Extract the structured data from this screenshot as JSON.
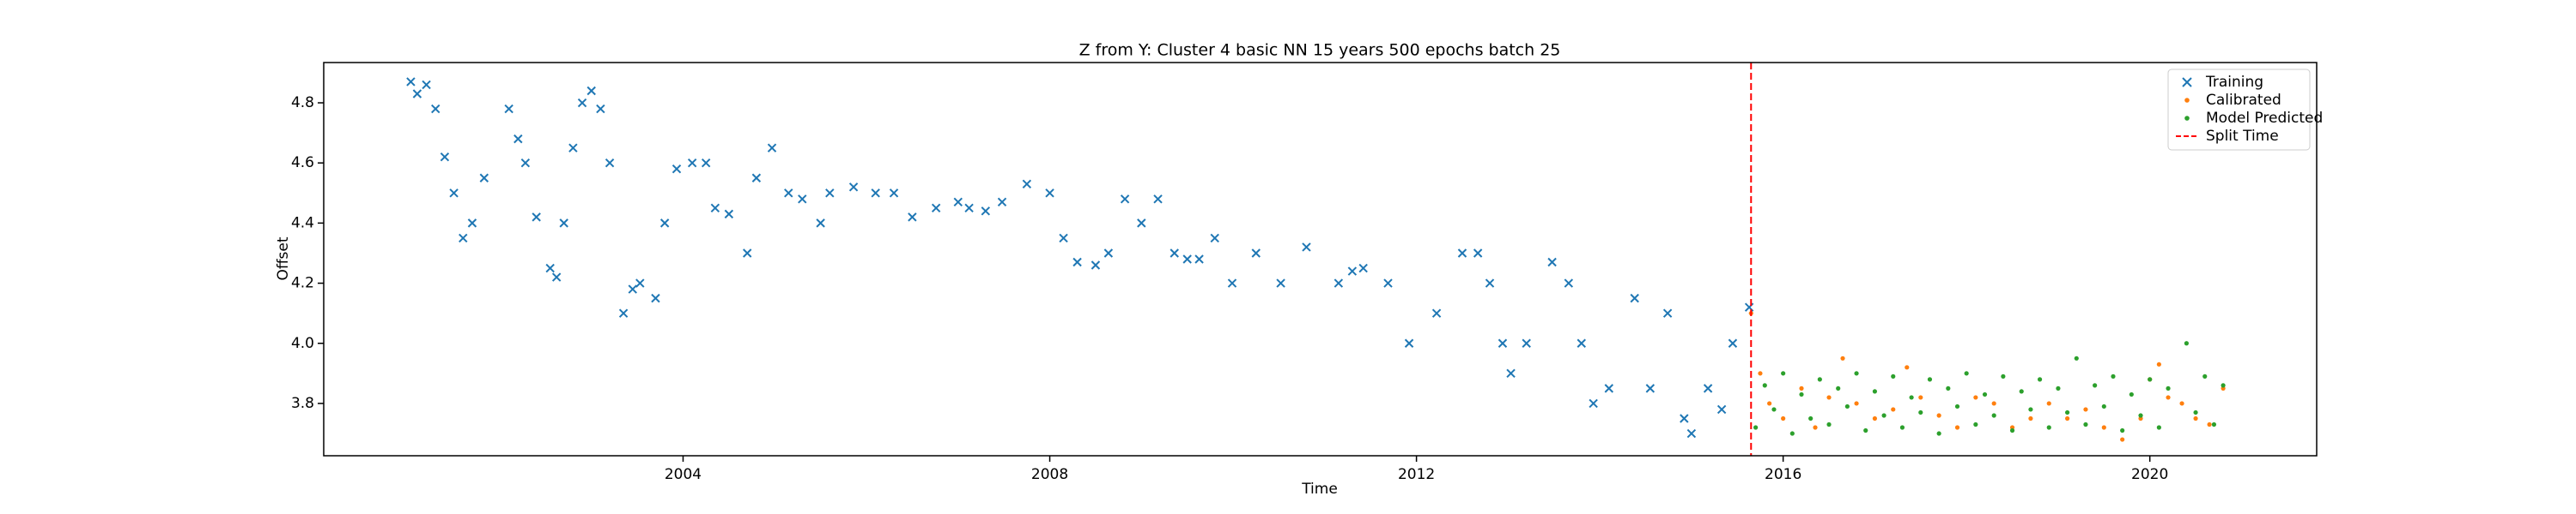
{
  "chart_data": {
    "type": "scatter",
    "title": "Z from Y: Cluster 4 basic NN 15 years 500 epochs batch 25",
    "x_label": "Time",
    "y_label": "Offset",
    "xlim": [
      2000.08,
      2021.82
    ],
    "ylim": [
      3.626,
      4.934
    ],
    "xticks": [
      2004,
      2008,
      2012,
      2016,
      2020
    ],
    "yticks": [
      {
        "value": 3.8,
        "label": "3.8"
      },
      {
        "value": 4.0,
        "label": "4.0"
      },
      {
        "value": 4.2,
        "label": "4.2"
      },
      {
        "value": 4.4,
        "label": "4.4"
      },
      {
        "value": 4.6,
        "label": "4.6"
      },
      {
        "value": 4.8,
        "label": "4.8"
      }
    ],
    "legend": "upper right",
    "series": [
      {
        "name": "Training",
        "color": "#1f77b4",
        "marker": "x",
        "x": [
          2001.03,
          2001.1,
          2001.2,
          2001.3,
          2001.4,
          2001.5,
          2001.6,
          2001.7,
          2001.83,
          2002.1,
          2002.2,
          2002.28,
          2002.4,
          2002.55,
          2002.62,
          2002.7,
          2002.8,
          2002.9,
          2003.0,
          2003.1,
          2003.2,
          2003.35,
          2003.45,
          2003.53,
          2003.7,
          2003.8,
          2003.93,
          2004.1,
          2004.25,
          2004.35,
          2004.5,
          2004.7,
          2004.8,
          2004.97,
          2005.15,
          2005.3,
          2005.5,
          2005.6,
          2005.86,
          2006.1,
          2006.3,
          2006.5,
          2006.76,
          2007.0,
          2007.12,
          2007.3,
          2007.48,
          2007.75,
          2008.0,
          2008.15,
          2008.3,
          2008.5,
          2008.64,
          2008.82,
          2009.0,
          2009.18,
          2009.36,
          2009.5,
          2009.63,
          2009.8,
          2009.99,
          2010.25,
          2010.52,
          2010.8,
          2011.15,
          2011.3,
          2011.42,
          2011.69,
          2011.92,
          2012.22,
          2012.5,
          2012.67,
          2012.8,
          2012.94,
          2013.03,
          2013.2,
          2013.48,
          2013.66,
          2013.8,
          2013.93,
          2014.1,
          2014.38,
          2014.55,
          2014.74,
          2014.92,
          2015.0,
          2015.18,
          2015.33,
          2015.45,
          2015.63
        ],
        "values": [
          4.87,
          4.83,
          4.86,
          4.78,
          4.62,
          4.5,
          4.35,
          4.4,
          4.55,
          4.78,
          4.68,
          4.6,
          4.42,
          4.25,
          4.22,
          4.4,
          4.65,
          4.8,
          4.84,
          4.78,
          4.6,
          4.1,
          4.18,
          4.2,
          4.15,
          4.4,
          4.58,
          4.6,
          4.6,
          4.45,
          4.43,
          4.3,
          4.55,
          4.65,
          4.5,
          4.48,
          4.4,
          4.5,
          4.52,
          4.5,
          4.5,
          4.42,
          4.45,
          4.47,
          4.45,
          4.44,
          4.47,
          4.53,
          4.5,
          4.35,
          4.27,
          4.26,
          4.3,
          4.48,
          4.4,
          4.48,
          4.3,
          4.28,
          4.28,
          4.35,
          4.2,
          4.3,
          4.2,
          4.32,
          4.2,
          4.24,
          4.25,
          4.2,
          4.0,
          4.1,
          4.3,
          4.3,
          4.2,
          4.0,
          3.9,
          4.0,
          4.27,
          4.2,
          4.0,
          3.8,
          3.85,
          4.15,
          3.85,
          4.1,
          3.75,
          3.7,
          3.85,
          3.78,
          4.0,
          4.12
        ]
      },
      {
        "name": "Calibrated",
        "color": "#ff7f0e",
        "marker": "dot",
        "x": [
          2015.65,
          2015.75,
          2015.85,
          2016.0,
          2016.2,
          2016.35,
          2016.5,
          2016.65,
          2016.8,
          2017.0,
          2017.2,
          2017.35,
          2017.5,
          2017.7,
          2017.9,
          2018.1,
          2018.3,
          2018.5,
          2018.7,
          2018.9,
          2019.1,
          2019.3,
          2019.5,
          2019.7,
          2019.9,
          2020.0,
          2020.1,
          2020.2,
          2020.35,
          2020.5,
          2020.65,
          2020.8
        ],
        "values": [
          4.1,
          3.9,
          3.8,
          3.75,
          3.85,
          3.72,
          3.82,
          3.95,
          3.8,
          3.75,
          3.78,
          3.92,
          3.82,
          3.76,
          3.72,
          3.82,
          3.8,
          3.72,
          3.75,
          3.8,
          3.75,
          3.78,
          3.72,
          3.68,
          3.75,
          3.88,
          3.93,
          3.82,
          3.8,
          3.75,
          3.73,
          3.85
        ]
      },
      {
        "name": "Model Predicted",
        "color": "#2ca02c",
        "marker": "dot",
        "x": [
          2015.7,
          2015.8,
          2015.9,
          2016.0,
          2016.1,
          2016.2,
          2016.3,
          2016.4,
          2016.5,
          2016.6,
          2016.7,
          2016.8,
          2016.9,
          2017.0,
          2017.1,
          2017.2,
          2017.3,
          2017.4,
          2017.5,
          2017.6,
          2017.7,
          2017.8,
          2017.9,
          2018.0,
          2018.1,
          2018.2,
          2018.3,
          2018.4,
          2018.5,
          2018.6,
          2018.7,
          2018.8,
          2018.9,
          2019.0,
          2019.1,
          2019.2,
          2019.3,
          2019.4,
          2019.5,
          2019.6,
          2019.7,
          2019.8,
          2019.9,
          2020.0,
          2020.1,
          2020.2,
          2020.4,
          2020.5,
          2020.6,
          2020.7,
          2020.8
        ],
        "values": [
          3.72,
          3.86,
          3.78,
          3.9,
          3.7,
          3.83,
          3.75,
          3.88,
          3.73,
          3.85,
          3.79,
          3.9,
          3.71,
          3.84,
          3.76,
          3.89,
          3.72,
          3.82,
          3.77,
          3.88,
          3.7,
          3.85,
          3.79,
          3.9,
          3.73,
          3.83,
          3.76,
          3.89,
          3.71,
          3.84,
          3.78,
          3.88,
          3.72,
          3.85,
          3.77,
          3.95,
          3.73,
          3.86,
          3.79,
          3.89,
          3.71,
          3.83,
          3.76,
          3.88,
          3.72,
          3.85,
          4.0,
          3.77,
          3.89,
          3.73,
          3.86
        ]
      }
    ],
    "vline": {
      "name": "Split Time",
      "x": 2015.65,
      "color": "#ff0000"
    }
  }
}
